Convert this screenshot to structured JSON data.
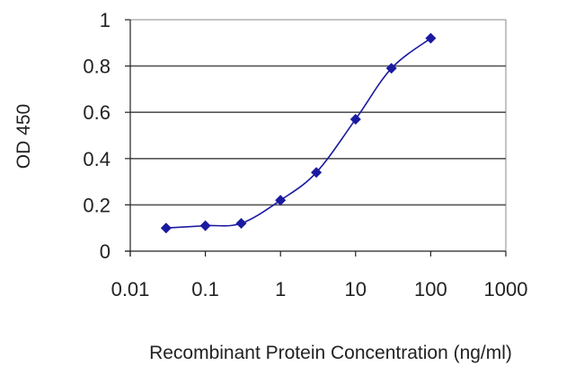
{
  "chart_data": {
    "type": "line",
    "title": "",
    "xlabel": "Recombinant Protein Concentration (ng/ml)",
    "ylabel": "OD 450",
    "xscale": "log",
    "xlim": [
      0.01,
      1000
    ],
    "ylim": [
      0,
      1
    ],
    "x_ticks": [
      "0.01",
      "0.1",
      "1",
      "10",
      "100",
      "1000"
    ],
    "y_ticks": [
      "0",
      "0.2",
      "0.4",
      "0.6",
      "0.8",
      "1"
    ],
    "grid": "horizontal",
    "legend": "none",
    "series": [
      {
        "x": [
          0.03,
          0.1,
          0.3,
          1,
          3,
          10,
          30,
          100
        ],
        "y": [
          0.1,
          0.11,
          0.12,
          0.22,
          0.34,
          0.57,
          0.79,
          0.92
        ]
      }
    ],
    "colors": {
      "series": "#1a1aa0",
      "grid": "#555555",
      "plot_border": "#888888",
      "background": "#ffffff"
    },
    "marker": "diamond"
  }
}
